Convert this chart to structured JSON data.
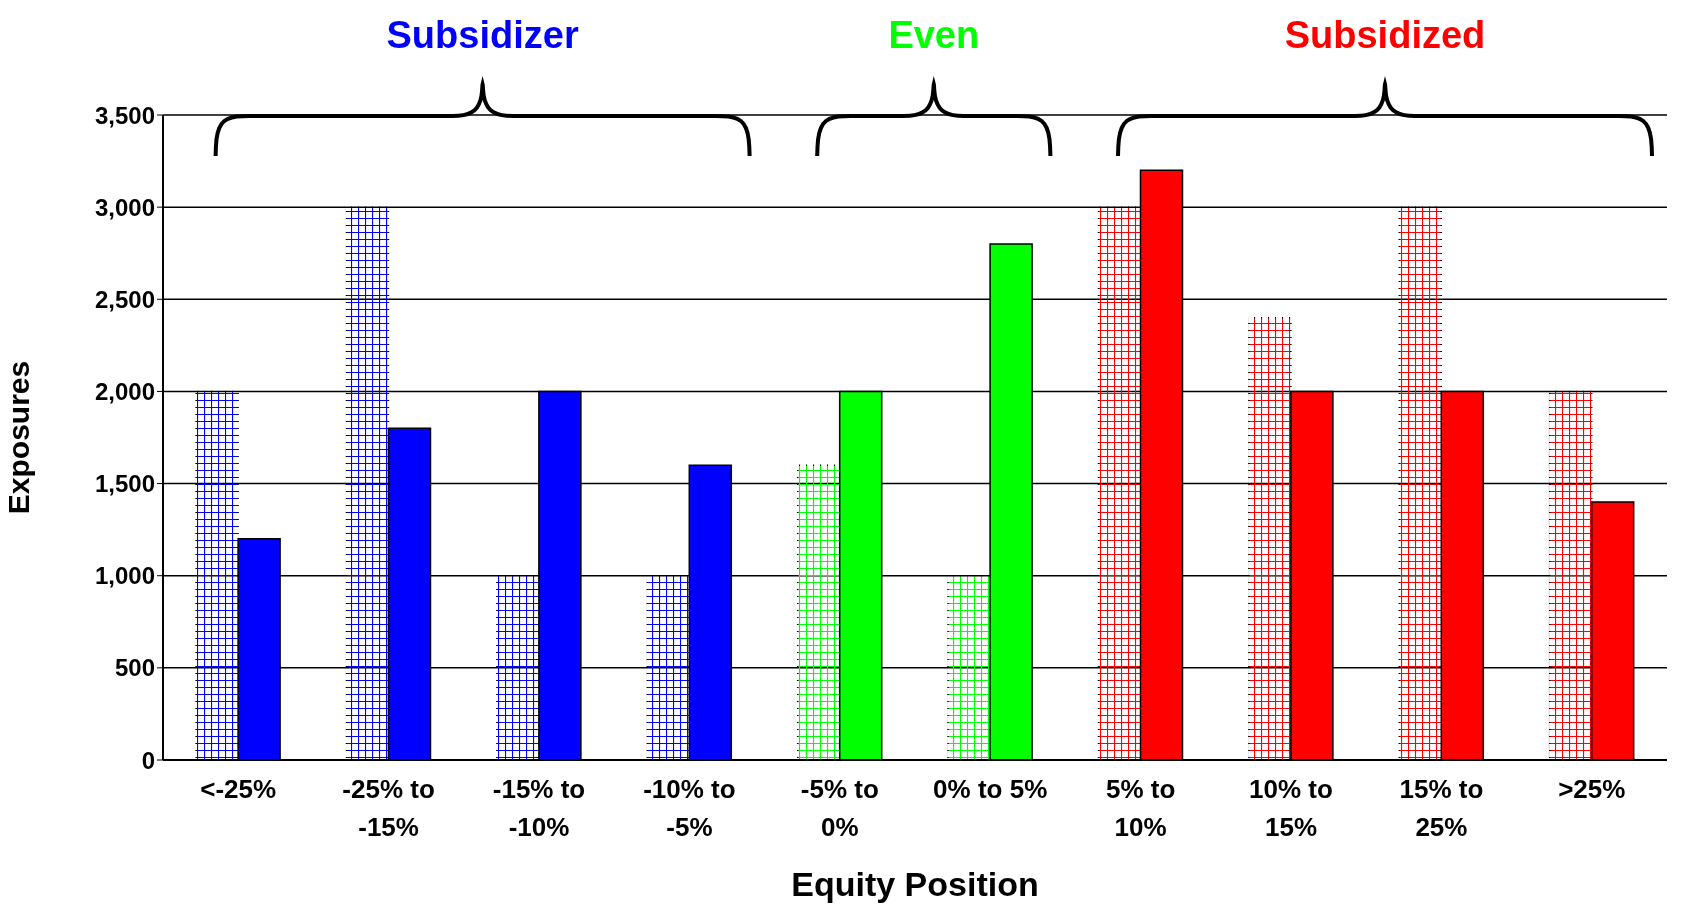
{
  "chart_data": {
    "type": "bar",
    "xlabel": "Equity Position",
    "ylabel": "Exposures",
    "categories": [
      "<-25%",
      "-25% to -15%",
      "-15% to -10%",
      "-10% to -5%",
      "-5% to 0%",
      "0% to 5%",
      "5% to 10%",
      "10% to 15%",
      "15% to 25%",
      ">25%"
    ],
    "series": [
      {
        "colors": [
          "#0000ff",
          "#0000ff",
          "#0000ff",
          "#0000ff",
          "#00ff00",
          "#00ff00",
          "#ff0000",
          "#ff0000",
          "#ff0000",
          "#ff0000"
        ],
        "values": [
          2000,
          3000,
          1000,
          1000,
          1600,
          1000,
          3000,
          2400,
          3000,
          2000
        ]
      },
      {
        "colors": [
          "#0000ff",
          "#0000ff",
          "#0000ff",
          "#0000ff",
          "#00ff00",
          "#00ff00",
          "#ff0000",
          "#ff0000",
          "#ff0000",
          "#ff0000"
        ],
        "values": [
          1200,
          1800,
          2000,
          1600,
          2000,
          2800,
          3200,
          2000,
          2000,
          1400
        ]
      }
    ],
    "ylim": [
      0,
      3500
    ],
    "yticks": [
      {
        "value": 0,
        "label": "0"
      },
      {
        "value": 500,
        "label": "500"
      },
      {
        "value": 1000,
        "label": "1,000"
      },
      {
        "value": 1500,
        "label": "1,500"
      },
      {
        "value": 2000,
        "label": "2,000"
      },
      {
        "value": 2500,
        "label": "2,500"
      },
      {
        "value": 3000,
        "label": "3,000"
      },
      {
        "value": 3500,
        "label": "3,500"
      }
    ],
    "grid": "y",
    "legend": false,
    "annotations": [
      "Subsidizer",
      "Even",
      "Subsidized"
    ]
  }
}
